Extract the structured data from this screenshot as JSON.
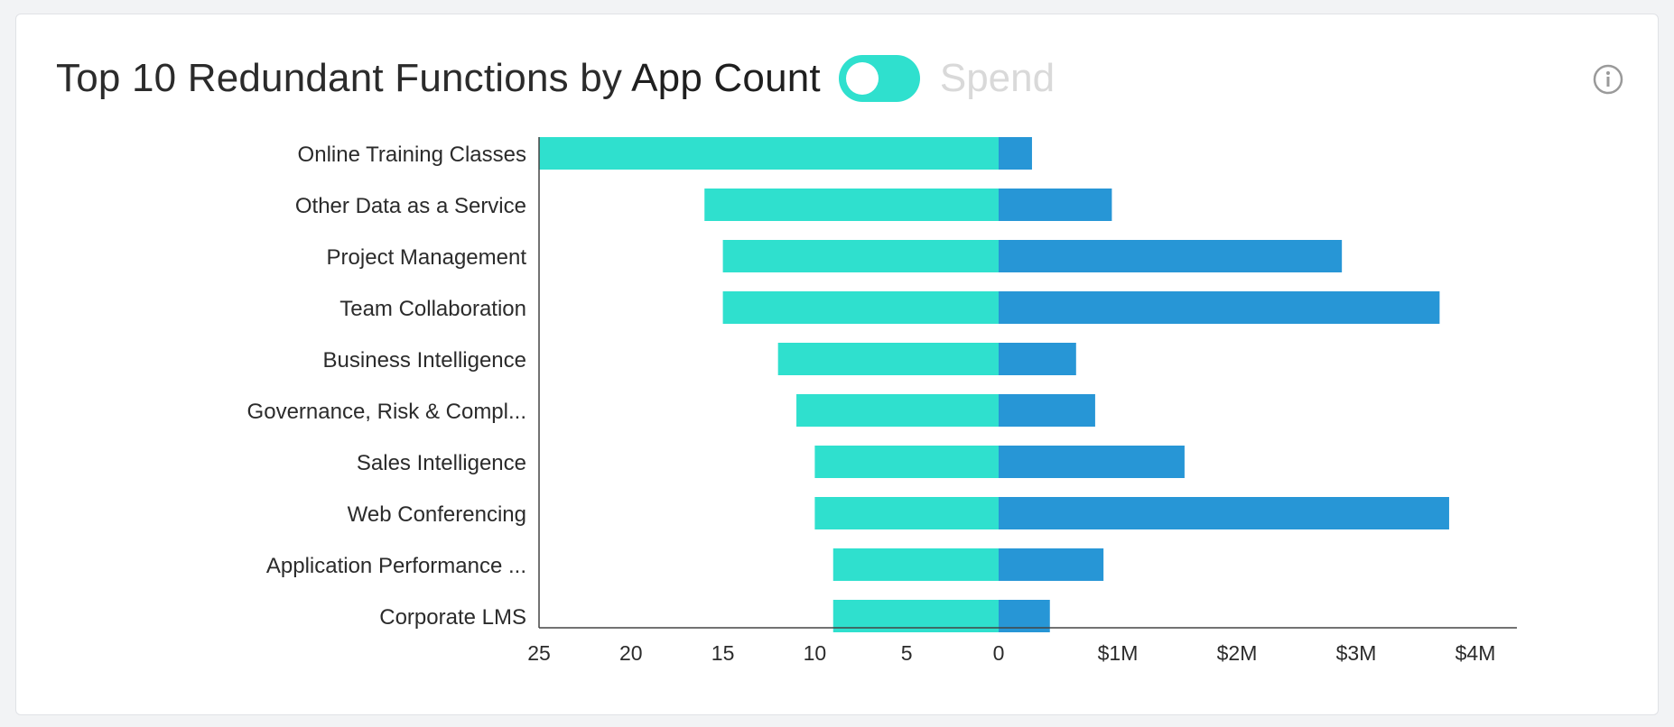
{
  "header": {
    "title_prefix": "Top 10 Redundant Functions by ",
    "active_option": "App Count",
    "inactive_option": "Spend"
  },
  "icons": {
    "info": "info-circle-icon",
    "toggle": "toggle-switch"
  },
  "colors": {
    "app_count": "#2fe0ce",
    "spend": "#2796d6",
    "axis": "#444444",
    "text": "#2b2b2b"
  },
  "chart_data": {
    "type": "bar",
    "orientation": "horizontal-diverging",
    "title": "Top 10 Redundant Functions by App Count",
    "categories": [
      "Online Training Classes",
      "Other Data as a Service",
      "Project Management",
      "Team Collaboration",
      "Business Intelligence",
      "Governance, Risk & Compl...",
      "Sales Intelligence",
      "Web Conferencing",
      "Application Performance ...",
      "Corporate LMS"
    ],
    "left": {
      "name": "App Count",
      "values": [
        25,
        16,
        15,
        15,
        12,
        11,
        10,
        10,
        9,
        9
      ],
      "ticks": [
        "25",
        "20",
        "15",
        "10",
        "5",
        "0"
      ],
      "range": [
        0,
        25
      ]
    },
    "right": {
      "name": "Spend",
      "values": [
        280000,
        950000,
        2880000,
        3700000,
        650000,
        810000,
        1560000,
        3780000,
        880000,
        430000
      ],
      "ticks": [
        "$1M",
        "$2M",
        "$3M",
        "$4M"
      ],
      "range": [
        0,
        4350000
      ]
    },
    "grid": false,
    "legend": "none"
  }
}
